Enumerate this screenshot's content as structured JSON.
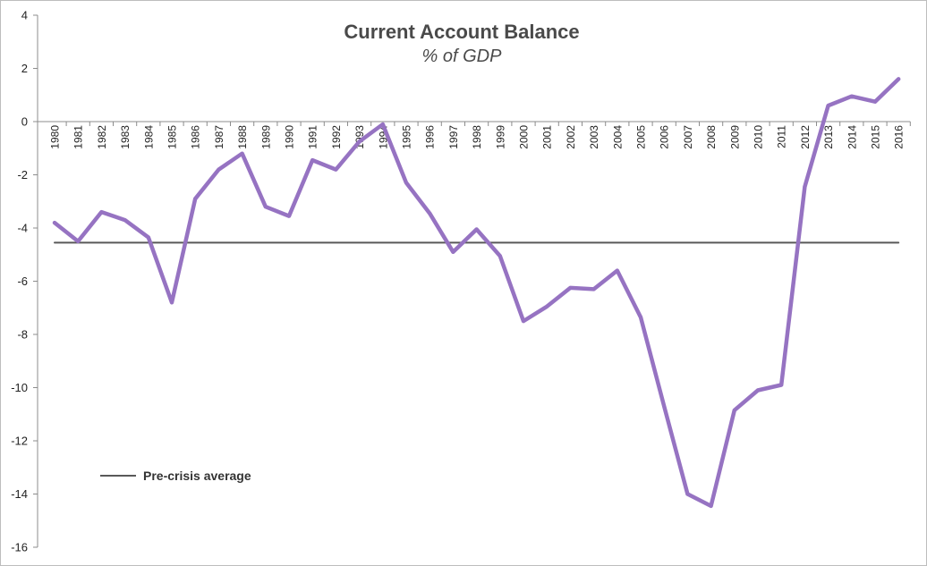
{
  "chart_data": {
    "type": "line",
    "title": "Current Account Balance",
    "subtitle": "% of GDP",
    "xlabel": "",
    "ylabel": "",
    "ylim": [
      -16,
      4
    ],
    "yticks": [
      4,
      2,
      0,
      -2,
      -4,
      -6,
      -8,
      -10,
      -12,
      -14,
      -16
    ],
    "grid": false,
    "legend_position": "bottom-left",
    "categories": [
      "1980",
      "1981",
      "1982",
      "1983",
      "1984",
      "1985",
      "1986",
      "1987",
      "1988",
      "1989",
      "1990",
      "1991",
      "1992",
      "1993",
      "1994",
      "1995",
      "1996",
      "1997",
      "1998",
      "1999",
      "2000",
      "2001",
      "2002",
      "2003",
      "2004",
      "2005",
      "2006",
      "2007",
      "2008",
      "2009",
      "2010",
      "2011",
      "2012",
      "2013",
      "2014",
      "2015",
      "2016"
    ],
    "series": [
      {
        "color": "#9673c2",
        "values": [
          -3.8,
          -4.5,
          -3.4,
          -3.7,
          -4.35,
          -6.8,
          -2.9,
          -1.8,
          -1.2,
          -3.2,
          -3.55,
          -1.45,
          -1.8,
          -0.75,
          -0.1,
          -2.3,
          -3.45,
          -4.9,
          -4.05,
          -5.05,
          -7.5,
          -6.95,
          -6.25,
          -6.3,
          -5.6,
          -7.35,
          -10.7,
          -14.0,
          -14.45,
          -10.85,
          -10.1,
          -9.9,
          -2.45,
          0.6,
          0.95,
          0.75,
          1.6
        ]
      },
      {
        "name": "Pre-crisis average",
        "color": "#595959",
        "values": [
          -4.55,
          -4.55,
          -4.55,
          -4.55,
          -4.55,
          -4.55,
          -4.55,
          -4.55,
          -4.55,
          -4.55,
          -4.55,
          -4.55,
          -4.55,
          -4.55,
          -4.55,
          -4.55,
          -4.55,
          -4.55,
          -4.55,
          -4.55,
          -4.55,
          -4.55,
          -4.55,
          -4.55,
          -4.55,
          -4.55,
          -4.55,
          -4.55,
          -4.55,
          -4.55,
          -4.55,
          -4.55,
          -4.55,
          -4.55,
          -4.55,
          -4.55,
          -4.55
        ]
      }
    ]
  }
}
